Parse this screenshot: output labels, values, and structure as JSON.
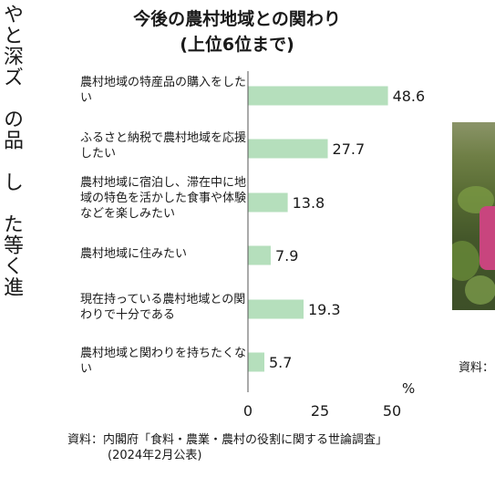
{
  "side_text": "やと深ズ　の品　し　た等く進",
  "chart_data": {
    "type": "bar",
    "orientation": "horizontal",
    "title": "今後の農村地域との関わり",
    "subtitle": "(上位6位まで)",
    "categories": [
      "農村地域の特産品の購入をしたい",
      "ふるさと納税で農村地域を応援したい",
      "農村地域に宿泊し、滞在中に地域の特色を活かした食事や体験などを楽しみたい",
      "農村地域に住みたい",
      "現在持っている農村地域との関わりで十分である",
      "農村地域と関わりを持ちたくない"
    ],
    "values": [
      48.6,
      27.7,
      13.8,
      7.9,
      19.3,
      5.7
    ],
    "value_labels": [
      "48.6",
      "27.7",
      "13.8",
      "7.9",
      "19.3",
      "5.7"
    ],
    "xlim": [
      0,
      50
    ],
    "xticks": [
      "0",
      "25",
      "50"
    ],
    "unit": "%",
    "bar_color": "#b5dfbc",
    "grid": false
  },
  "source": {
    "line1": "資料：内閣府「食料・農業・農村の役割に関する世論調査」",
    "line2": "(2024年2月公表)"
  },
  "right_source": "資料："
}
